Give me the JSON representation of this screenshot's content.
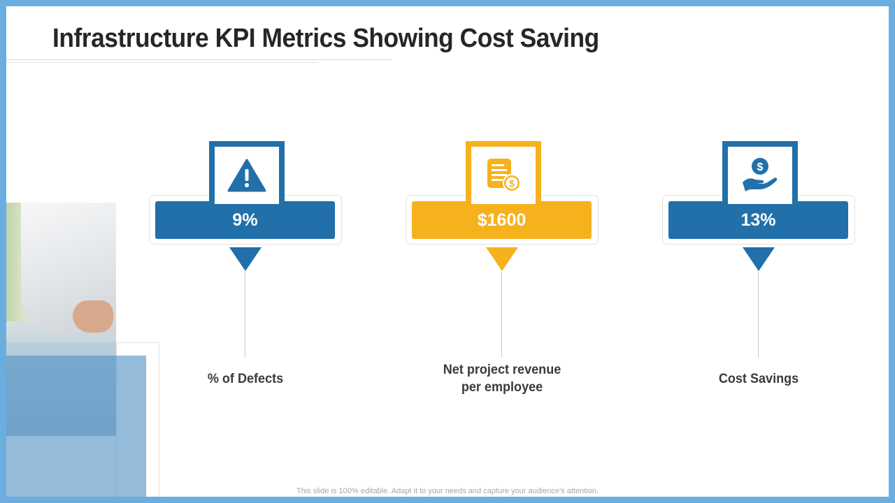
{
  "slide": {
    "title": "Infrastructure KPI Metrics Showing Cost Saving",
    "footer": "This slide is 100% editable. Adapt it to your needs and capture your audience's attention.",
    "colors": {
      "blue": "#2170a9",
      "yellow": "#f6b21c",
      "frame": "#6aaee0"
    }
  },
  "kpis": [
    {
      "value": "9%",
      "label_lines": [
        "% of Defects"
      ],
      "icon": "warning-icon",
      "color": "blue"
    },
    {
      "value": "$1600",
      "label_lines": [
        "Net project revenue",
        "per employee"
      ],
      "icon": "invoice-dollar-icon",
      "color": "yellow"
    },
    {
      "value": "13%",
      "label_lines": [
        "Cost Savings"
      ],
      "icon": "hand-dollar-icon",
      "color": "blue"
    }
  ]
}
